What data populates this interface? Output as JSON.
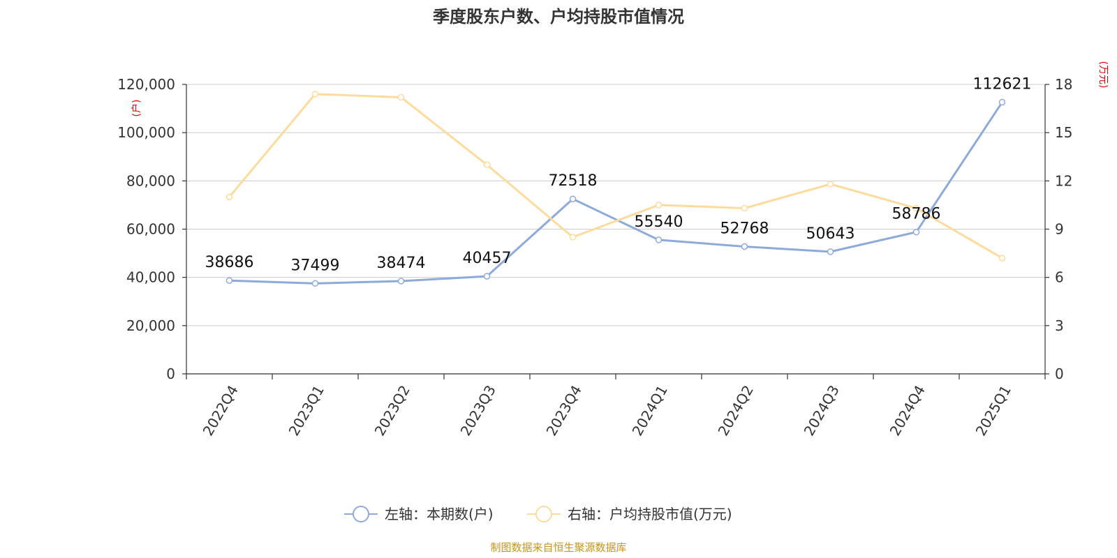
{
  "chart_data": {
    "type": "line",
    "title": "季度股东户数、户均持股市值情况",
    "categories": [
      "2022Q4",
      "2023Q1",
      "2023Q2",
      "2023Q3",
      "2023Q4",
      "2024Q1",
      "2024Q2",
      "2024Q3",
      "2024Q4",
      "2025Q1"
    ],
    "series": [
      {
        "name": "左轴：本期数(户)",
        "axis": "left",
        "color": "#8eaadb",
        "values": [
          38686,
          37499,
          38474,
          40457,
          72518,
          55540,
          52768,
          50643,
          58786,
          112621
        ],
        "data_labels": [
          "38686",
          "37499",
          "38474",
          "40457",
          "72518",
          "55540",
          "52768",
          "50643",
          "58786",
          "112621"
        ]
      },
      {
        "name": "右轴：户均持股市值(万元)",
        "axis": "right",
        "color": "#fddb9c",
        "values": [
          11.0,
          17.4,
          17.2,
          13.0,
          8.5,
          10.5,
          10.3,
          11.8,
          10.3,
          7.2
        ]
      }
    ],
    "left_axis": {
      "unit": "(户)",
      "ylim": [
        0,
        120000
      ],
      "ticks": [
        0,
        20000,
        40000,
        60000,
        80000,
        100000,
        120000
      ],
      "tick_labels": [
        "0",
        "20,000",
        "40,000",
        "60,000",
        "80,000",
        "100,000",
        "120,000"
      ]
    },
    "right_axis": {
      "unit": "(万元)",
      "ylim": [
        0,
        18
      ],
      "ticks": [
        0,
        3,
        6,
        9,
        12,
        15,
        18
      ],
      "tick_labels": [
        "0",
        "3",
        "6",
        "9",
        "12",
        "15",
        "18"
      ]
    },
    "grid": true,
    "legend_position": "bottom"
  },
  "source": "制图数据来自恒生聚源数据库",
  "colors": {
    "grid": "#cccccc",
    "axis": "#333333",
    "unit": "#e60000",
    "source": "#c8941a"
  }
}
